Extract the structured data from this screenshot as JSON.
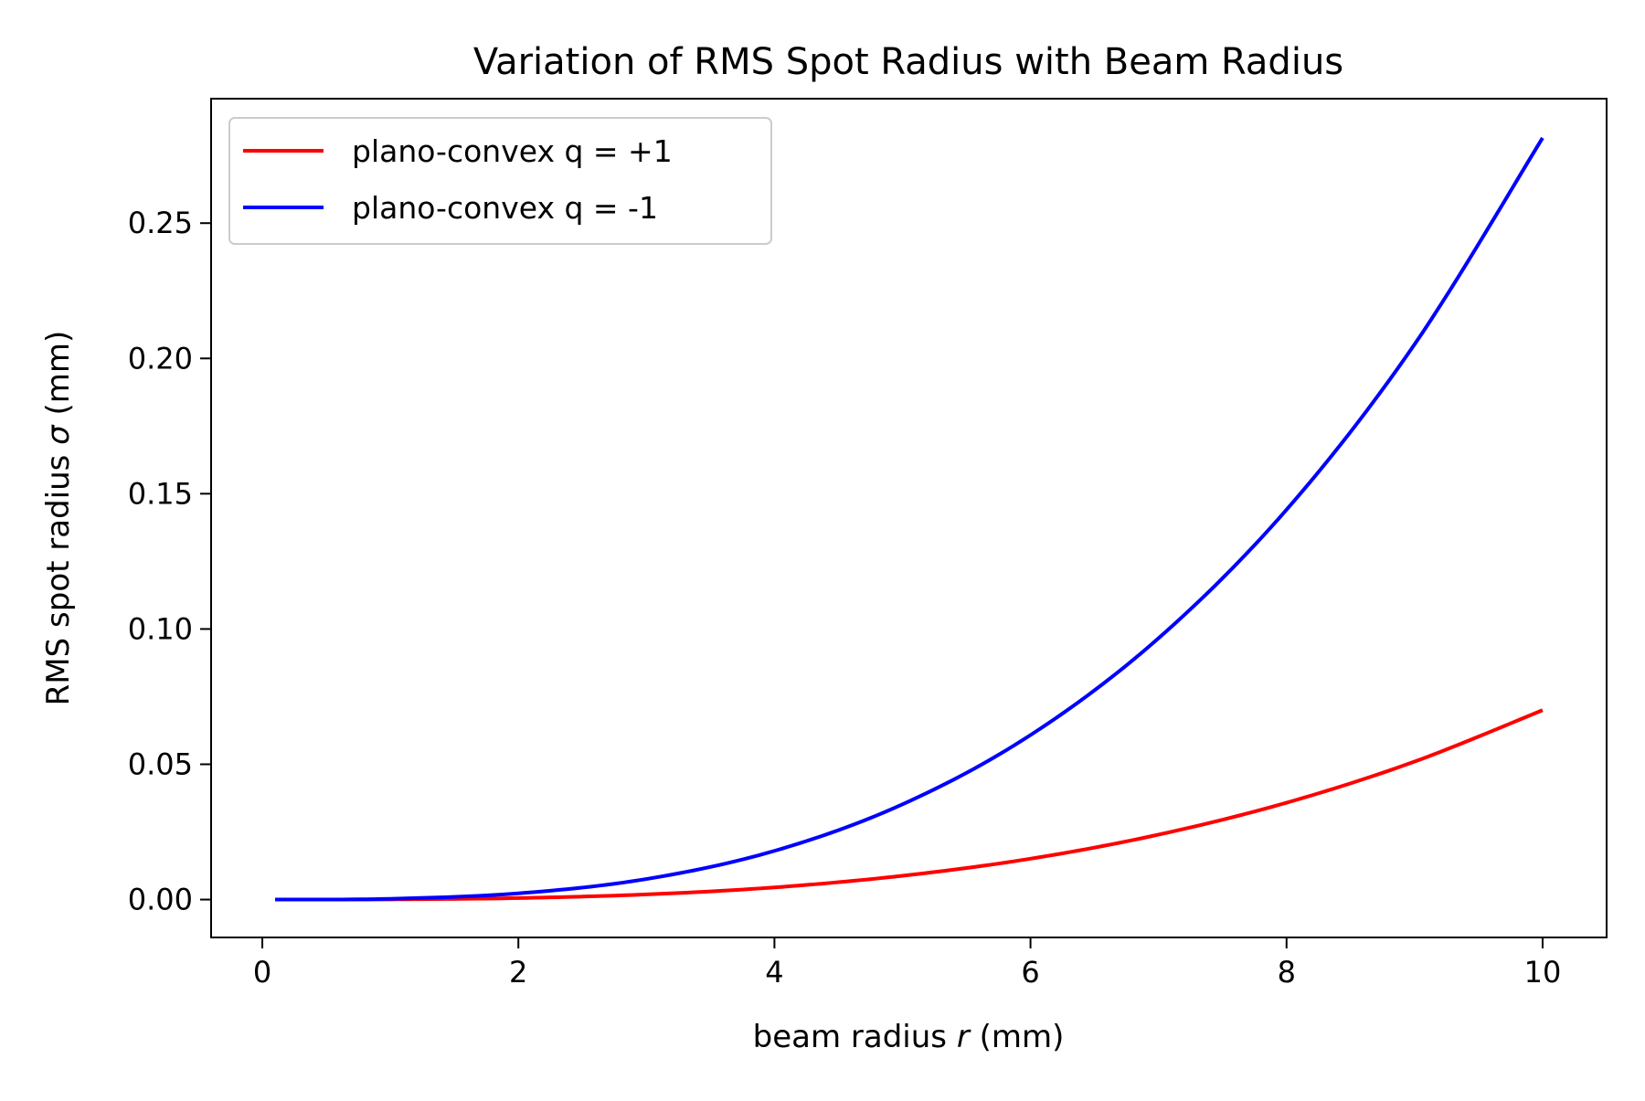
{
  "chart_data": {
    "type": "line",
    "title": "Variation of RMS Spot Radius with Beam Radius",
    "xlabel": {
      "prefix": "beam radius ",
      "variable": "r",
      "suffix": " (mm)"
    },
    "ylabel": {
      "prefix": "RMS spot radius ",
      "variable": "σ",
      "suffix": " (mm)"
    },
    "xlim": [
      -0.4,
      10.5
    ],
    "ylim": [
      -0.014,
      0.296
    ],
    "x_ticks": [
      0,
      2,
      4,
      6,
      8,
      10
    ],
    "x_tick_labels": [
      "0",
      "2",
      "4",
      "6",
      "8",
      "10"
    ],
    "y_ticks": [
      0.0,
      0.05,
      0.1,
      0.15,
      0.2,
      0.25
    ],
    "y_tick_labels": [
      "0.00",
      "0.05",
      "0.10",
      "0.15",
      "0.20",
      "0.25"
    ],
    "grid": false,
    "legend_position": "upper-left",
    "series": [
      {
        "name": "plano-convex q = +1",
        "color": "#ff0000",
        "x": [
          0.1,
          1,
          2,
          3,
          4,
          5,
          6,
          7,
          8,
          9,
          10
        ],
        "y": [
          0.0,
          7e-05,
          0.00056,
          0.0019,
          0.0045,
          0.0088,
          0.0151,
          0.024,
          0.0358,
          0.051,
          0.07
        ]
      },
      {
        "name": "plano-convex q = -1",
        "color": "#0000ff",
        "x": [
          0.1,
          1,
          2,
          3,
          4,
          5,
          6,
          7,
          8,
          9,
          10
        ],
        "y": [
          0.0,
          0.00028,
          0.0023,
          0.0076,
          0.018,
          0.0352,
          0.0608,
          0.0966,
          0.1441,
          0.2052,
          0.2815
        ]
      }
    ]
  }
}
